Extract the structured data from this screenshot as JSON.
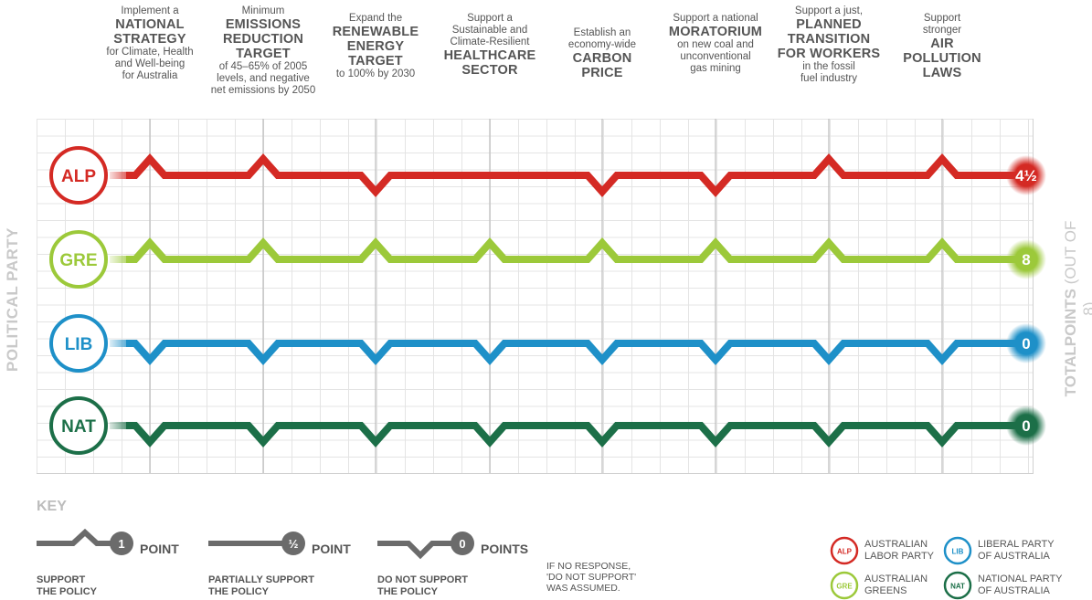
{
  "axis": {
    "left_label": "POLITICAL PARTY",
    "right_label_bold": "TOTALPOINTS",
    "right_label_light": "(OUT OF 8)"
  },
  "policies": [
    {
      "pre": "Implement a",
      "bold": [
        "NATIONAL",
        "STRATEGY"
      ],
      "post": [
        "for Climate, Health",
        "and Well-being",
        "for Australia"
      ]
    },
    {
      "pre": "Minimum",
      "bold": [
        "EMISSIONS",
        "REDUCTION",
        "TARGET"
      ],
      "post": [
        "of 45–65% of 2005",
        "levels, and negative",
        "net emissions by 2050"
      ]
    },
    {
      "pre": "Expand the",
      "bold": [
        "RENEWABLE",
        "ENERGY",
        "TARGET"
      ],
      "post": [
        "to 100% by 2030"
      ]
    },
    {
      "pre": "Support a",
      "pre2": [
        "Sustainable and",
        "Climate-Resilient"
      ],
      "bold": [
        "HEALTHCARE",
        "SECTOR"
      ],
      "post": []
    },
    {
      "pre": "Establish an",
      "pre2": [
        "economy-wide"
      ],
      "bold": [
        "CARBON",
        "PRICE"
      ],
      "post": []
    },
    {
      "pre": "Support a national",
      "bold": [
        "MORATORIUM"
      ],
      "post": [
        "on new coal and",
        "unconventional",
        "gas mining"
      ]
    },
    {
      "pre": "Support a just,",
      "bold": [
        "PLANNED",
        "TRANSITION",
        "FOR WORKERS"
      ],
      "post": [
        "in the fossil",
        "fuel industry"
      ]
    },
    {
      "pre": "Support",
      "pre2": [
        "stronger"
      ],
      "bold": [
        "AIR",
        "POLLUTION",
        "LAWS"
      ],
      "post": []
    }
  ],
  "chart_data": {
    "type": "line",
    "title": "",
    "xlabel": "",
    "ylabel": "POLITICAL PARTY",
    "categories": [
      "National Strategy for Climate, Health and Well-being",
      "Emissions Reduction Target",
      "Renewable Energy Target",
      "Healthcare Sector",
      "Carbon Price",
      "Moratorium",
      "Planned Transition for Workers",
      "Air Pollution Laws"
    ],
    "series": [
      {
        "name": "ALP",
        "full_name": "AUSTRALIAN LABOR PARTY",
        "color": "#d42a24",
        "values": [
          1,
          1,
          0,
          0.5,
          0,
          0,
          1,
          1
        ],
        "total": "4½"
      },
      {
        "name": "GRE",
        "full_name": "AUSTRALIAN GREENS",
        "color": "#9cc93a",
        "values": [
          1,
          1,
          1,
          1,
          1,
          1,
          1,
          1
        ],
        "total": "8"
      },
      {
        "name": "LIB",
        "full_name": "LIBERAL PARTY OF AUSTRALIA",
        "color": "#1e90c8",
        "values": [
          0,
          0,
          0,
          0,
          0,
          0,
          0,
          0
        ],
        "total": "0"
      },
      {
        "name": "NAT",
        "full_name": "NATIONAL PARTY OF AUSTRALIA",
        "color": "#1c6f48",
        "values": [
          0,
          0,
          0,
          0,
          0,
          0,
          0,
          0
        ],
        "total": "0"
      }
    ],
    "scale": {
      "1": "SUPPORT THE POLICY",
      "0.5": "PARTIALLY SUPPORT THE POLICY",
      "0": "DO NOT SUPPORT THE POLICY"
    },
    "grid": true
  },
  "key": {
    "title": "KEY",
    "items": [
      {
        "badge": "1",
        "points": "POINT",
        "caption1": "SUPPORT",
        "caption2": "THE POLICY"
      },
      {
        "badge": "½",
        "points": "POINT",
        "caption1": "PARTIALLY SUPPORT",
        "caption2": "THE POLICY"
      },
      {
        "badge": "0",
        "points": "POINTS",
        "caption1": "DO NOT SUPPORT",
        "caption2": "THE POLICY"
      }
    ],
    "note": [
      "IF NO RESPONSE,",
      "'DO NOT SUPPORT'",
      "WAS ASSUMED."
    ],
    "legend": [
      {
        "abbr": "ALP",
        "line1": "AUSTRALIAN",
        "line2": "LABOR PARTY",
        "color": "#d42a24"
      },
      {
        "abbr": "LIB",
        "line1": "LIBERAL PARTY",
        "line2": "OF AUSTRALIA",
        "color": "#1e90c8"
      },
      {
        "abbr": "GRE",
        "line1": "AUSTRALIAN",
        "line2": "GREENS",
        "color": "#9cc93a"
      },
      {
        "abbr": "NAT",
        "line1": "NATIONAL PARTY",
        "line2": "OF AUSTRALIA",
        "color": "#1c6f48"
      }
    ]
  }
}
